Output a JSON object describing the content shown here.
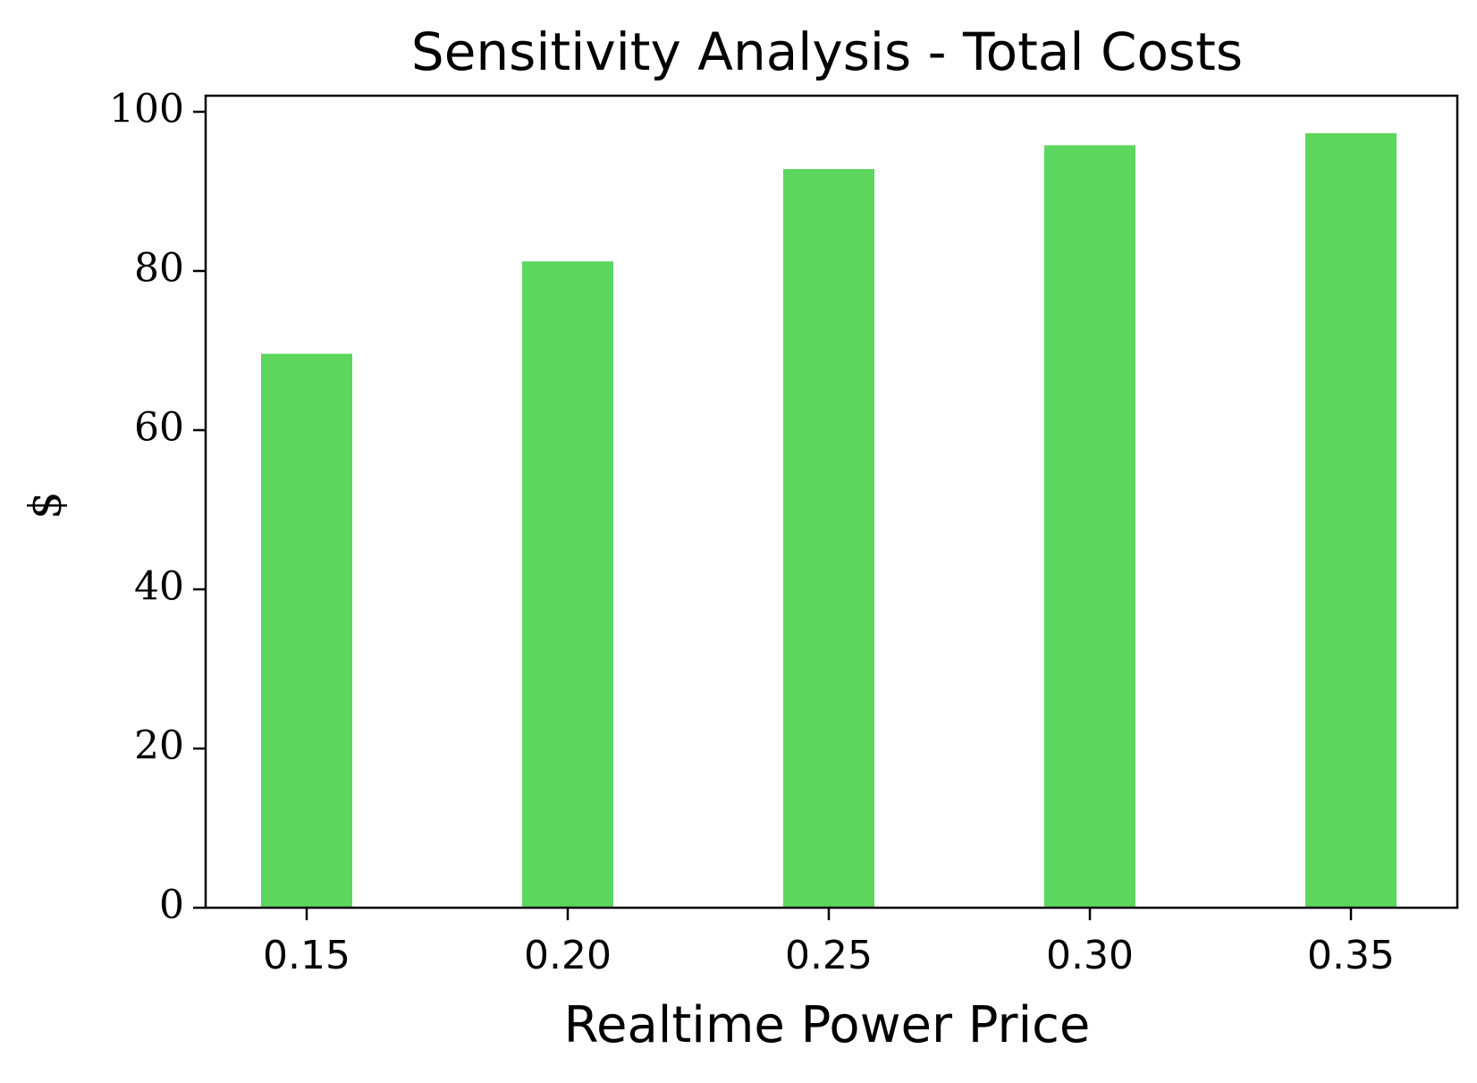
{
  "chart_data": {
    "type": "bar",
    "title": "Sensitivity Analysis - Total Costs",
    "xlabel": "Realtime Power Price",
    "ylabel": "$",
    "categories": [
      "0.15",
      "0.20",
      "0.25",
      "0.30",
      "0.35"
    ],
    "values": [
      69.6,
      81.2,
      92.8,
      95.8,
      97.3
    ],
    "yticks": [
      0,
      20,
      40,
      60,
      80,
      100
    ],
    "ylim": [
      0,
      102
    ],
    "grid": false,
    "bar_color": "#5cd65c"
  }
}
